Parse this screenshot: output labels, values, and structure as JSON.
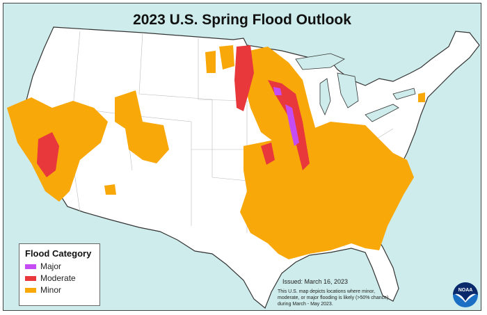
{
  "title": "2023 U.S. Spring Flood Outlook",
  "legend": {
    "title": "Flood Category",
    "items": [
      {
        "label": "Major",
        "color": "#c44cf2"
      },
      {
        "label": "Moderate",
        "color": "#e8383c"
      },
      {
        "label": "Minor",
        "color": "#f9a80a"
      }
    ]
  },
  "issued": "Issued: March 16, 2023",
  "note": "This U.S. map depicts locations where minor, moderate, or major flooding is likely (>50% chance) during March - May 2023.",
  "logo": "NOAA",
  "colors": {
    "ocean": "#cdeceb",
    "land": "#ffffff",
    "border": "#333333"
  }
}
